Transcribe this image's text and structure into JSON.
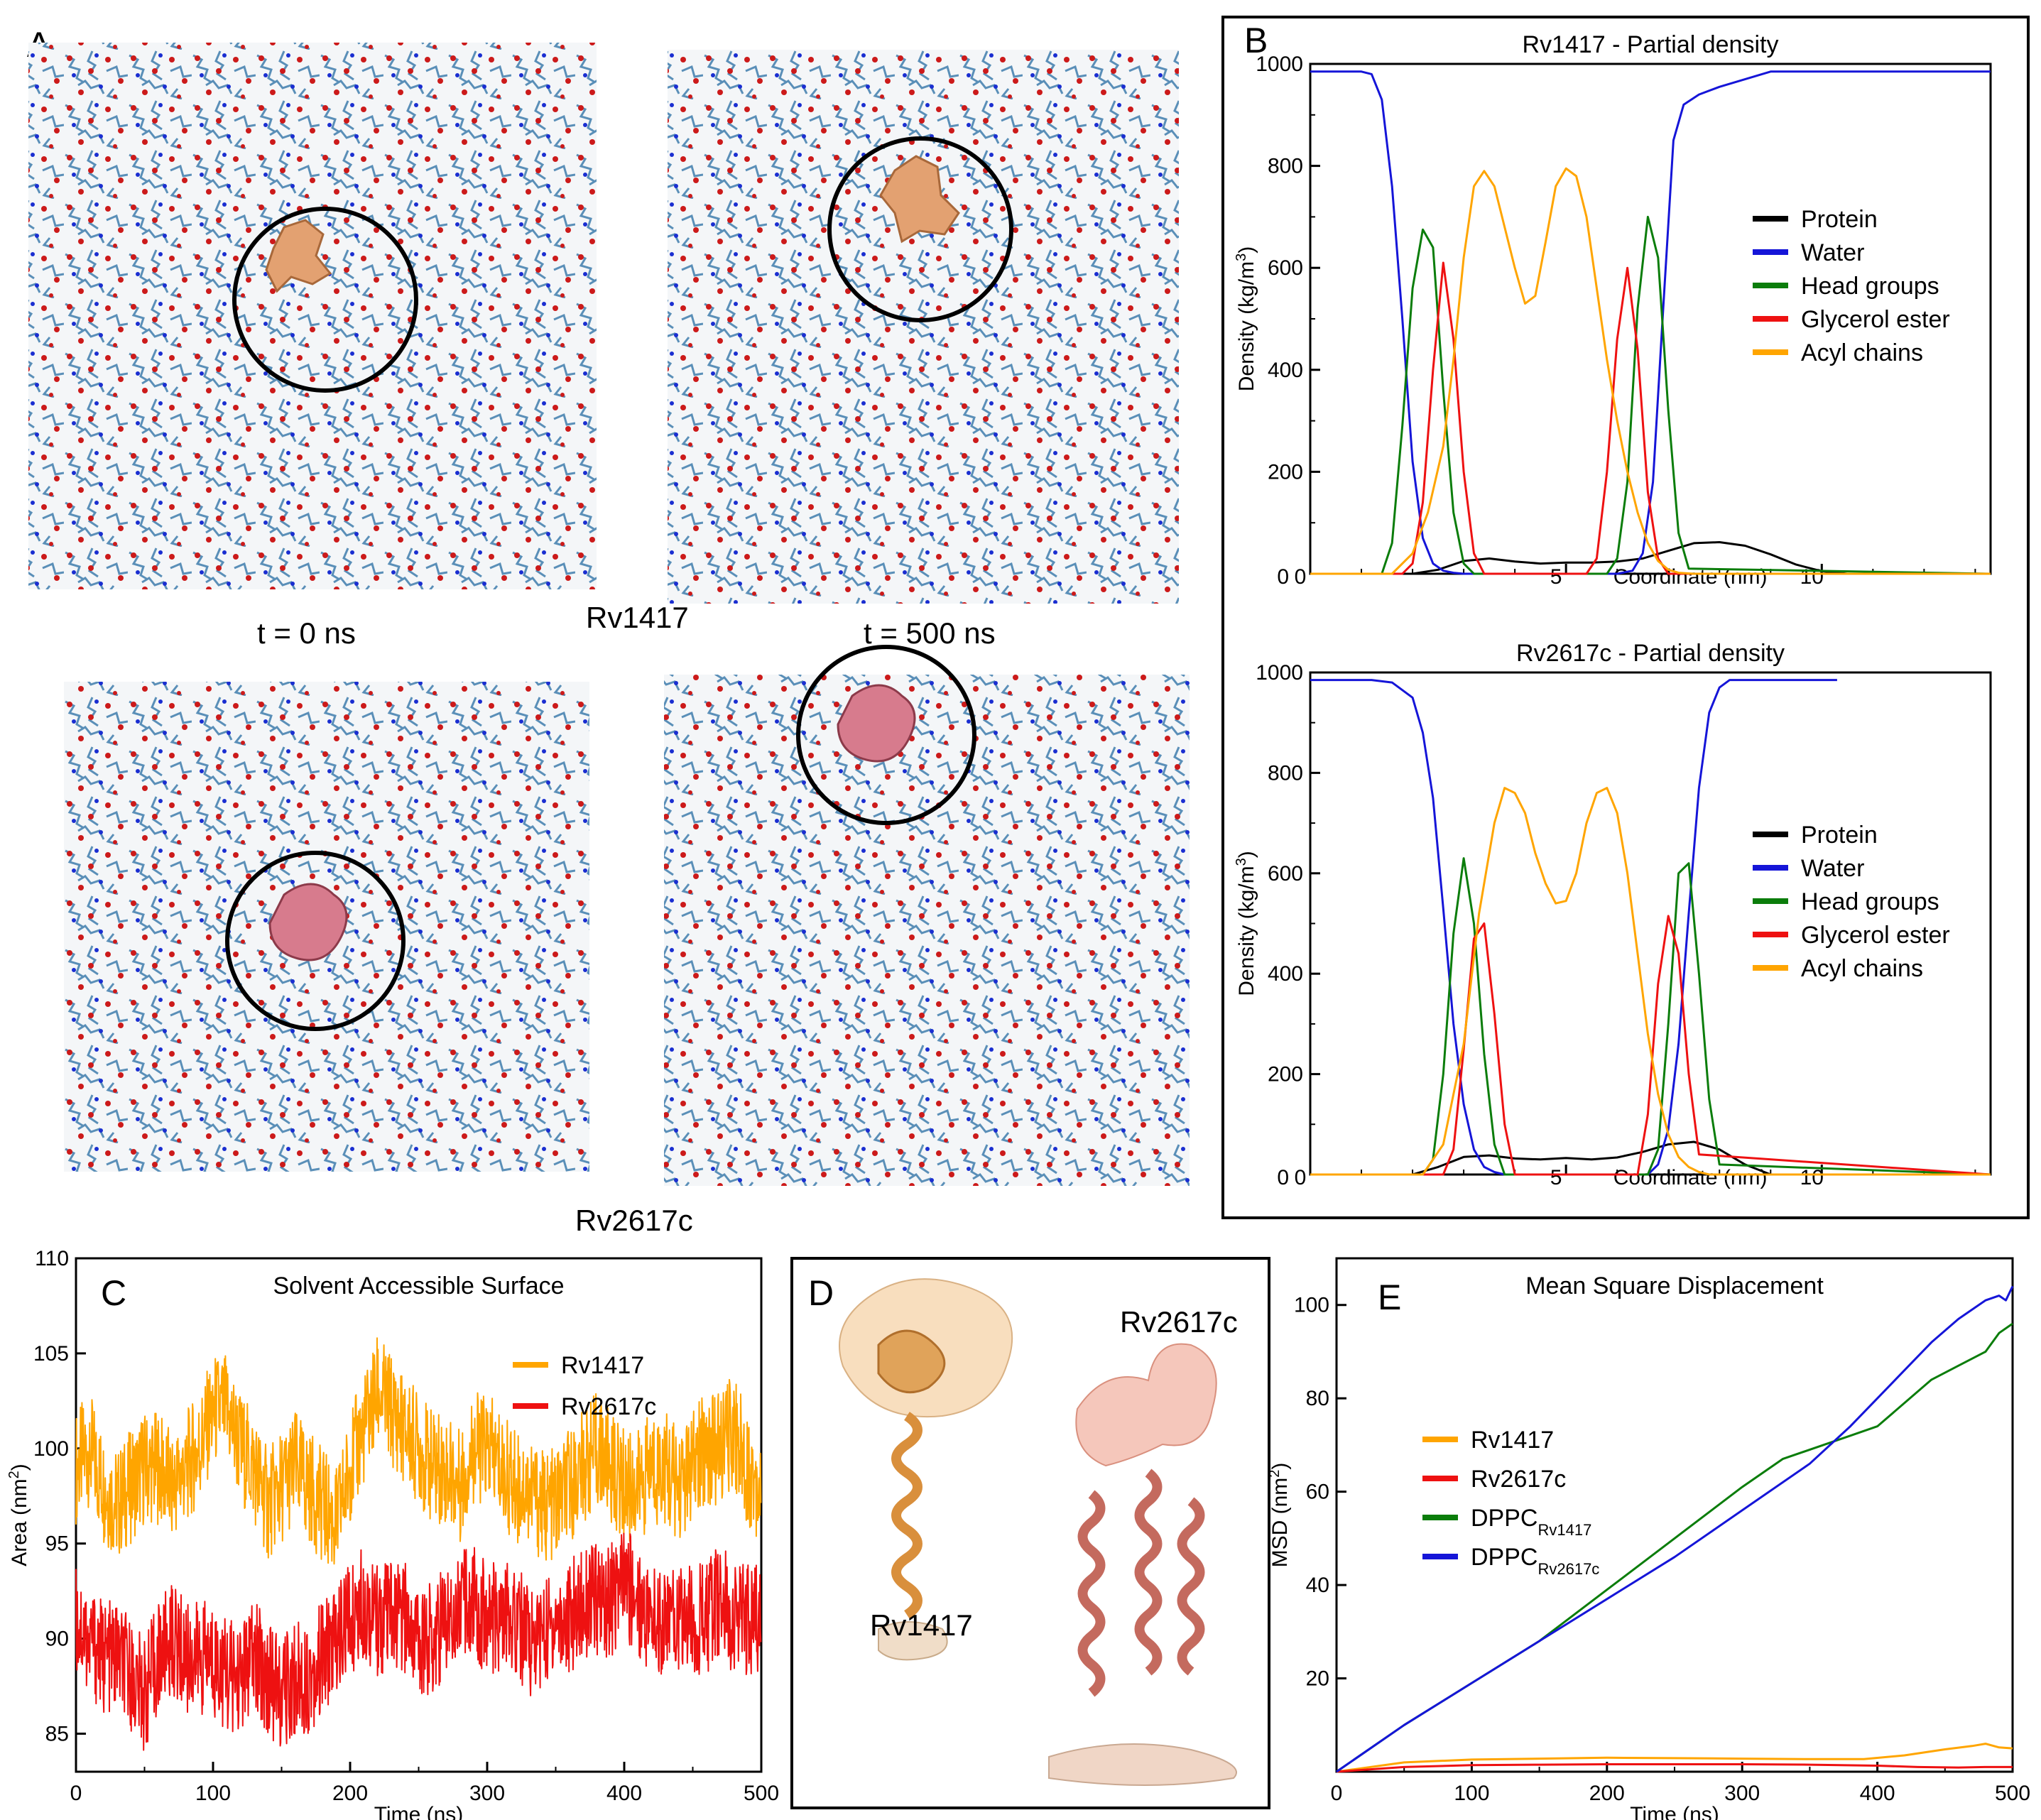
{
  "colors": {
    "protein": "#000000",
    "water": "#1515d8",
    "head_groups": "#0b7d0b",
    "glycerol_ester": "#ee1111",
    "acyl_chains": "#ffa500",
    "rv1417": "#ffa500",
    "rv2617c": "#ee1111",
    "dppc_rv1417": "#0b7d0b",
    "dppc_rv2617c": "#1515d8",
    "lipid_blue": "#5a8fb8",
    "lipid_red": "#cc1a1a",
    "rv1417_protein": "#e3a171",
    "rv2617c_protein": "#d77b8d"
  },
  "panelA": {
    "letter": "A",
    "label_t0": "t = 0 ns",
    "label_t500": "t = 500 ns",
    "label_rv1417": "Rv1417",
    "label_rv2617c": "Rv2617c"
  },
  "panelB": {
    "letter": "B",
    "legend": [
      "Protein",
      "Water",
      "Head groups",
      "Glycerol ester",
      "Acyl chains"
    ]
  },
  "panelC": {
    "letter": "C"
  },
  "panelD": {
    "letter": "D",
    "label_rv1417": "Rv1417",
    "label_rv2617c": "Rv2617c"
  },
  "panelE": {
    "letter": "E"
  },
  "chart_data": [
    {
      "id": "B1",
      "type": "line",
      "title": "Rv1417 - Partial density",
      "xlabel": "Coordinate (nm)",
      "ylabel": "Density (kg/m³)",
      "ylabel_base": "Density (kg/m",
      "ylabel_sup": "3",
      "ylabel_end": ")",
      "xlim": [
        0,
        13.3
      ],
      "ylim": [
        0,
        1000
      ],
      "xticks": [
        0,
        5,
        10
      ],
      "yticks": [
        200,
        400,
        600,
        800,
        1000
      ],
      "legend_position": "right",
      "series": [
        {
          "name": "Protein",
          "x": [
            0,
            2,
            2.5,
            3,
            3.5,
            4,
            4.5,
            5,
            5.5,
            6,
            6.5,
            7,
            7.5,
            8,
            8.5,
            9,
            9.5,
            10,
            10.5,
            13.3
          ],
          "y": [
            0,
            0,
            8,
            25,
            30,
            24,
            20,
            22,
            22,
            24,
            30,
            45,
            60,
            62,
            55,
            38,
            18,
            5,
            0,
            0
          ]
        },
        {
          "name": "Water",
          "x": [
            0,
            0.6,
            1.0,
            1.2,
            1.4,
            1.6,
            1.8,
            2.0,
            2.2,
            2.4,
            2.6,
            2.8,
            3.0,
            3.2,
            3.5,
            6.0,
            6.3,
            6.5,
            6.7,
            6.9,
            7.1,
            7.3,
            7.6,
            8.0,
            9.0,
            10.0,
            11.0,
            13.3
          ],
          "y": [
            985,
            985,
            985,
            980,
            930,
            760,
            500,
            220,
            70,
            20,
            6,
            2,
            0,
            0,
            0,
            0,
            6,
            40,
            180,
            520,
            850,
            920,
            940,
            955,
            985,
            985,
            985,
            985
          ]
        },
        {
          "name": "Head groups",
          "x": [
            0,
            1.4,
            1.6,
            1.8,
            2.0,
            2.2,
            2.4,
            2.6,
            2.8,
            3.0,
            3.2,
            5.8,
            6.0,
            6.2,
            6.4,
            6.6,
            6.8,
            7.0,
            7.2,
            7.4,
            13.3
          ],
          "y": [
            0,
            0,
            60,
            290,
            560,
            675,
            640,
            360,
            120,
            20,
            0,
            0,
            30,
            180,
            520,
            700,
            620,
            320,
            80,
            10,
            0
          ]
        },
        {
          "name": "Glycerol ester",
          "x": [
            0,
            1.8,
            2.0,
            2.2,
            2.4,
            2.6,
            2.8,
            3.0,
            3.2,
            3.4,
            5.4,
            5.6,
            5.8,
            6.0,
            6.2,
            6.4,
            6.6,
            6.8,
            7.0,
            13.3
          ],
          "y": [
            0,
            0,
            20,
            140,
            400,
            610,
            460,
            200,
            40,
            0,
            0,
            30,
            200,
            460,
            600,
            440,
            160,
            30,
            0,
            0
          ]
        },
        {
          "name": "Acyl chains",
          "x": [
            0,
            1.6,
            2.0,
            2.3,
            2.6,
            2.8,
            3.0,
            3.2,
            3.4,
            3.6,
            3.8,
            4.0,
            4.2,
            4.4,
            4.6,
            4.8,
            5.0,
            5.2,
            5.4,
            5.6,
            5.8,
            6.0,
            6.2,
            6.4,
            6.6,
            6.8,
            7.0,
            7.2,
            7.5,
            13.3
          ],
          "y": [
            0,
            0,
            40,
            120,
            250,
            420,
            620,
            760,
            790,
            760,
            680,
            600,
            530,
            545,
            650,
            760,
            795,
            780,
            700,
            560,
            420,
            300,
            200,
            120,
            60,
            25,
            8,
            2,
            0,
            0
          ]
        }
      ]
    },
    {
      "id": "B2",
      "type": "line",
      "title": "Rv2617c - Partial density",
      "xlabel": "Coordinate (nm)",
      "ylabel": "Density (kg/m³)",
      "ylabel_base": "Density (kg/m",
      "ylabel_sup": "3",
      "ylabel_end": ")",
      "xlim": [
        0,
        13.3
      ],
      "ylim": [
        0,
        1000
      ],
      "xticks": [
        0,
        5,
        10
      ],
      "yticks": [
        200,
        400,
        600,
        800,
        1000
      ],
      "legend_position": "right",
      "series": [
        {
          "name": "Protein",
          "x": [
            0,
            2,
            2.5,
            3,
            3.5,
            4,
            4.5,
            5,
            5.5,
            6,
            6.5,
            7,
            7.5,
            8,
            8.5,
            9,
            13.3
          ],
          "y": [
            0,
            0,
            15,
            35,
            38,
            32,
            30,
            33,
            30,
            34,
            45,
            60,
            65,
            50,
            20,
            0,
            0
          ]
        },
        {
          "name": "Water",
          "x": [
            0,
            0.8,
            1.2,
            1.6,
            2.0,
            2.2,
            2.4,
            2.6,
            2.8,
            3.0,
            3.2,
            3.4,
            3.6,
            3.8,
            4.0,
            6.6,
            6.8,
            7.0,
            7.2,
            7.4,
            7.6,
            7.8,
            8.0,
            8.2,
            8.6,
            9.0,
            10.0,
            10.3
          ],
          "y": [
            985,
            985,
            985,
            980,
            950,
            880,
            750,
            530,
            300,
            140,
            50,
            15,
            5,
            0,
            0,
            0,
            20,
            90,
            260,
            520,
            770,
            920,
            970,
            985,
            985,
            985,
            985,
            985
          ]
        },
        {
          "name": "Head groups",
          "x": [
            0,
            2.2,
            2.4,
            2.6,
            2.8,
            3.0,
            3.2,
            3.4,
            3.6,
            3.8,
            6.6,
            6.8,
            7.0,
            7.2,
            7.4,
            7.6,
            7.8,
            8.0,
            13.3
          ],
          "y": [
            0,
            0,
            30,
            200,
            480,
            630,
            500,
            240,
            60,
            0,
            0,
            50,
            300,
            600,
            620,
            400,
            150,
            20,
            0
          ]
        },
        {
          "name": "Glycerol ester",
          "x": [
            0,
            2.6,
            2.8,
            3.0,
            3.2,
            3.4,
            3.6,
            3.8,
            4.0,
            6.4,
            6.6,
            6.8,
            7.0,
            7.2,
            7.4,
            7.6,
            13.3
          ],
          "y": [
            0,
            0,
            50,
            250,
            470,
            500,
            320,
            100,
            0,
            0,
            120,
            380,
            515,
            440,
            200,
            40,
            0
          ]
        },
        {
          "name": "Acyl chains",
          "x": [
            0,
            2.2,
            2.6,
            3.0,
            3.3,
            3.6,
            3.8,
            4.0,
            4.2,
            4.4,
            4.6,
            4.8,
            5.0,
            5.2,
            5.4,
            5.6,
            5.8,
            6.0,
            6.2,
            6.4,
            6.6,
            6.8,
            7.0,
            7.2,
            7.4,
            7.6,
            7.8,
            8.2,
            13.3
          ],
          "y": [
            0,
            0,
            60,
            260,
            520,
            700,
            770,
            760,
            720,
            640,
            580,
            540,
            545,
            600,
            700,
            760,
            770,
            720,
            600,
            440,
            280,
            160,
            80,
            35,
            15,
            5,
            0,
            0,
            0
          ]
        }
      ]
    },
    {
      "id": "C",
      "type": "line",
      "title": "Solvent Accessible Surface",
      "xlabel": "Time (ns)",
      "ylabel": "Area (nm²)",
      "ylabel_base": "Area (nm",
      "ylabel_sup": "2",
      "ylabel_end": ")",
      "xlim": [
        0,
        500
      ],
      "ylim": [
        83,
        110
      ],
      "xticks": [
        0,
        100,
        200,
        300,
        400,
        500
      ],
      "yticks": [
        85,
        90,
        95,
        100,
        105,
        110
      ],
      "legend_position": "top-right",
      "series": [
        {
          "name": "Rv1417",
          "x": [
            0,
            10,
            20,
            30,
            40,
            50,
            60,
            70,
            80,
            90,
            100,
            110,
            120,
            130,
            140,
            150,
            160,
            170,
            180,
            190,
            200,
            210,
            220,
            230,
            240,
            250,
            260,
            270,
            280,
            290,
            300,
            310,
            320,
            330,
            340,
            350,
            360,
            370,
            380,
            390,
            400,
            410,
            420,
            430,
            440,
            450,
            460,
            470,
            480,
            490,
            500
          ],
          "y": [
            99,
            100,
            98,
            97,
            98,
            99,
            99,
            98,
            99,
            100,
            102,
            102,
            100,
            99,
            97,
            98,
            99,
            98,
            97,
            96,
            99,
            101,
            103,
            102,
            101,
            100,
            99,
            99,
            98,
            100,
            100,
            99,
            98,
            98,
            97,
            97,
            98,
            99,
            100,
            99,
            98,
            98,
            99,
            99,
            98,
            99,
            100,
            100,
            101,
            99,
            98
          ]
        },
        {
          "name": "Rv2617c",
          "x": [
            0,
            10,
            20,
            30,
            40,
            50,
            60,
            70,
            80,
            90,
            100,
            110,
            120,
            130,
            140,
            150,
            160,
            170,
            180,
            190,
            200,
            210,
            220,
            230,
            240,
            250,
            260,
            270,
            280,
            290,
            300,
            310,
            320,
            330,
            340,
            350,
            360,
            370,
            380,
            390,
            400,
            410,
            420,
            430,
            440,
            450,
            460,
            470,
            480,
            490,
            500
          ],
          "y": [
            91,
            90,
            89,
            89,
            88,
            87,
            89,
            90,
            89,
            89,
            89,
            88,
            88,
            89,
            88,
            87,
            88,
            88,
            89,
            90,
            91,
            92,
            91,
            91,
            91,
            90,
            90,
            91,
            92,
            92,
            91,
            91,
            91,
            90,
            90,
            91,
            91,
            92,
            92,
            92,
            93,
            92,
            91,
            91,
            91,
            91,
            91,
            92,
            91,
            91,
            91
          ]
        }
      ]
    },
    {
      "id": "E",
      "type": "line",
      "title": "Mean Square Displacement",
      "xlabel": "Time (ns)",
      "ylabel": "MSD (nm²)",
      "ylabel_base": "MSD (nm",
      "ylabel_sup": "2",
      "ylabel_end": ")",
      "xlim": [
        0,
        500
      ],
      "ylim": [
        0,
        110
      ],
      "xticks": [
        0,
        100,
        200,
        300,
        400,
        500
      ],
      "yticks": [
        20,
        40,
        60,
        80,
        100
      ],
      "legend_position": "left",
      "series": [
        {
          "name": "Rv1417",
          "x": [
            0,
            50,
            100,
            150,
            200,
            250,
            300,
            350,
            390,
            420,
            450,
            470,
            480,
            490,
            500
          ],
          "y": [
            0,
            2,
            2.6,
            2.8,
            3.0,
            2.9,
            2.8,
            2.7,
            2.7,
            3.5,
            4.8,
            5.5,
            6.0,
            5.2,
            5.0
          ]
        },
        {
          "name": "Rv2617c",
          "x": [
            0,
            50,
            100,
            150,
            200,
            250,
            300,
            350,
            400,
            430,
            460,
            480,
            500
          ],
          "y": [
            0,
            1.0,
            1.4,
            1.5,
            1.6,
            1.6,
            1.6,
            1.5,
            1.3,
            1.0,
            0.9,
            1.0,
            1.0
          ]
        },
        {
          "name": "DPPC",
          "sub": "Rv1417",
          "x": [
            0,
            50,
            100,
            150,
            200,
            250,
            300,
            330,
            360,
            380,
            400,
            420,
            440,
            460,
            480,
            490,
            500
          ],
          "y": [
            0,
            10,
            19,
            28,
            39,
            50,
            61,
            67,
            70,
            72,
            74,
            79,
            84,
            87,
            90,
            94,
            96
          ]
        },
        {
          "name": "DPPC",
          "sub": "Rv2617c",
          "x": [
            0,
            50,
            100,
            150,
            200,
            250,
            300,
            350,
            380,
            400,
            420,
            440,
            460,
            480,
            490,
            495,
            500
          ],
          "y": [
            0,
            10,
            19,
            28,
            37,
            46,
            56,
            66,
            74,
            80,
            86,
            92,
            97,
            101,
            102,
            101,
            104
          ]
        }
      ]
    }
  ]
}
